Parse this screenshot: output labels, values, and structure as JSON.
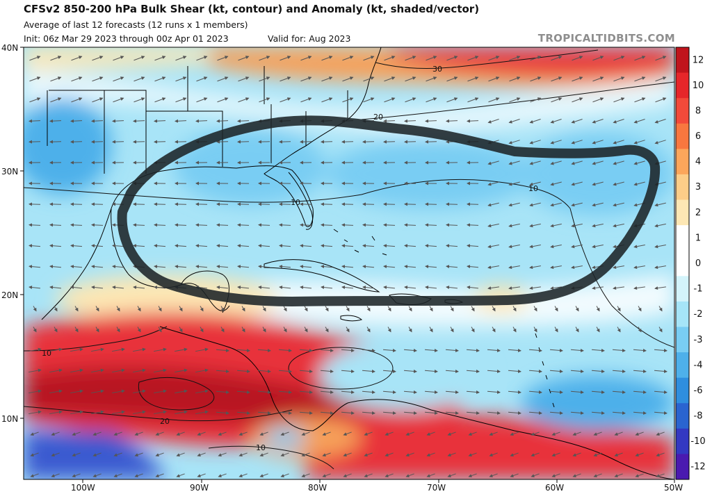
{
  "header": {
    "title": "CFSv2 850-200 hPa Bulk Shear (kt, contour) and Anomaly (kt, shaded/vector)",
    "subtitle": "Average of last 12 forecasts (12 runs x 1 members)",
    "init": "Init: 06z Mar 29 2023 through 00z Apr 01 2023",
    "valid": "Valid for: Aug 2023",
    "brand": "TROPICALTIDBITS.COM"
  },
  "map": {
    "lat_labels": [
      "40N",
      "30N",
      "20N",
      "10N"
    ],
    "lon_labels": [
      "100W",
      "90W",
      "80W",
      "70W",
      "60W",
      "50W"
    ],
    "contour_labels": [
      "30",
      "20",
      "10",
      "10",
      "10",
      "20",
      "10"
    ]
  },
  "colorbar": {
    "labels": [
      "12",
      "10",
      "8",
      "6",
      "4",
      "3",
      "2",
      "1",
      "0",
      "-1",
      "-2",
      "-3",
      "-4",
      "-6",
      "-8",
      "-10",
      "-12"
    ],
    "colors": [
      "#c0141c",
      "#e6262a",
      "#f24a3a",
      "#f8773f",
      "#fca65b",
      "#fdcd88",
      "#fde7b4",
      "#ffffff",
      "#ffffff",
      "#d4f4fb",
      "#a6e5f8",
      "#79cdf3",
      "#4eb0ea",
      "#2f8ede",
      "#2a64d0",
      "#3338c2",
      "#4a1ab0"
    ]
  },
  "colors": {
    "land_outline": "#000000",
    "arrow": "#555555",
    "annotation": "#1d2428"
  }
}
